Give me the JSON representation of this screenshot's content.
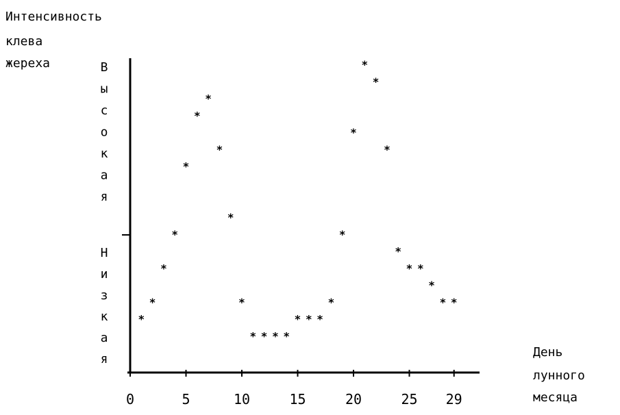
{
  "chart_data": {
    "type": "scatter",
    "ylabel_lines": [
      "Интенсивность",
      "клева",
      "жереха"
    ],
    "xlabel_lines": [
      "День",
      "лунного",
      "месяца"
    ],
    "y_high_label": [
      "В",
      "ы",
      "с",
      "о",
      "к",
      "а",
      "я"
    ],
    "y_low_label": [
      "Н",
      "и",
      "з",
      "к",
      "а",
      "я"
    ],
    "x_ticks": [
      "0",
      "5",
      "10",
      "15",
      "20",
      "25",
      "29"
    ],
    "x_tick_values": [
      0,
      5,
      10,
      15,
      20,
      25,
      29
    ],
    "xlim": [
      0,
      31
    ],
    "ylim": [
      0,
      18
    ],
    "marker": "*",
    "points": [
      {
        "x": 1,
        "y": 3
      },
      {
        "x": 2,
        "y": 4
      },
      {
        "x": 3,
        "y": 6
      },
      {
        "x": 4,
        "y": 8
      },
      {
        "x": 5,
        "y": 12
      },
      {
        "x": 6,
        "y": 15
      },
      {
        "x": 7,
        "y": 16
      },
      {
        "x": 8,
        "y": 13
      },
      {
        "x": 9,
        "y": 9
      },
      {
        "x": 10,
        "y": 4
      },
      {
        "x": 11,
        "y": 2
      },
      {
        "x": 12,
        "y": 2
      },
      {
        "x": 13,
        "y": 2
      },
      {
        "x": 14,
        "y": 2
      },
      {
        "x": 15,
        "y": 3
      },
      {
        "x": 16,
        "y": 3
      },
      {
        "x": 17,
        "y": 3
      },
      {
        "x": 18,
        "y": 4
      },
      {
        "x": 19,
        "y": 8
      },
      {
        "x": 20,
        "y": 14
      },
      {
        "x": 21,
        "y": 18
      },
      {
        "x": 22,
        "y": 17
      },
      {
        "x": 23,
        "y": 13
      },
      {
        "x": 24,
        "y": 7
      },
      {
        "x": 25,
        "y": 6
      },
      {
        "x": 26,
        "y": 6
      },
      {
        "x": 27,
        "y": 5
      },
      {
        "x": 28,
        "y": 4
      },
      {
        "x": 29,
        "y": 4
      }
    ]
  }
}
